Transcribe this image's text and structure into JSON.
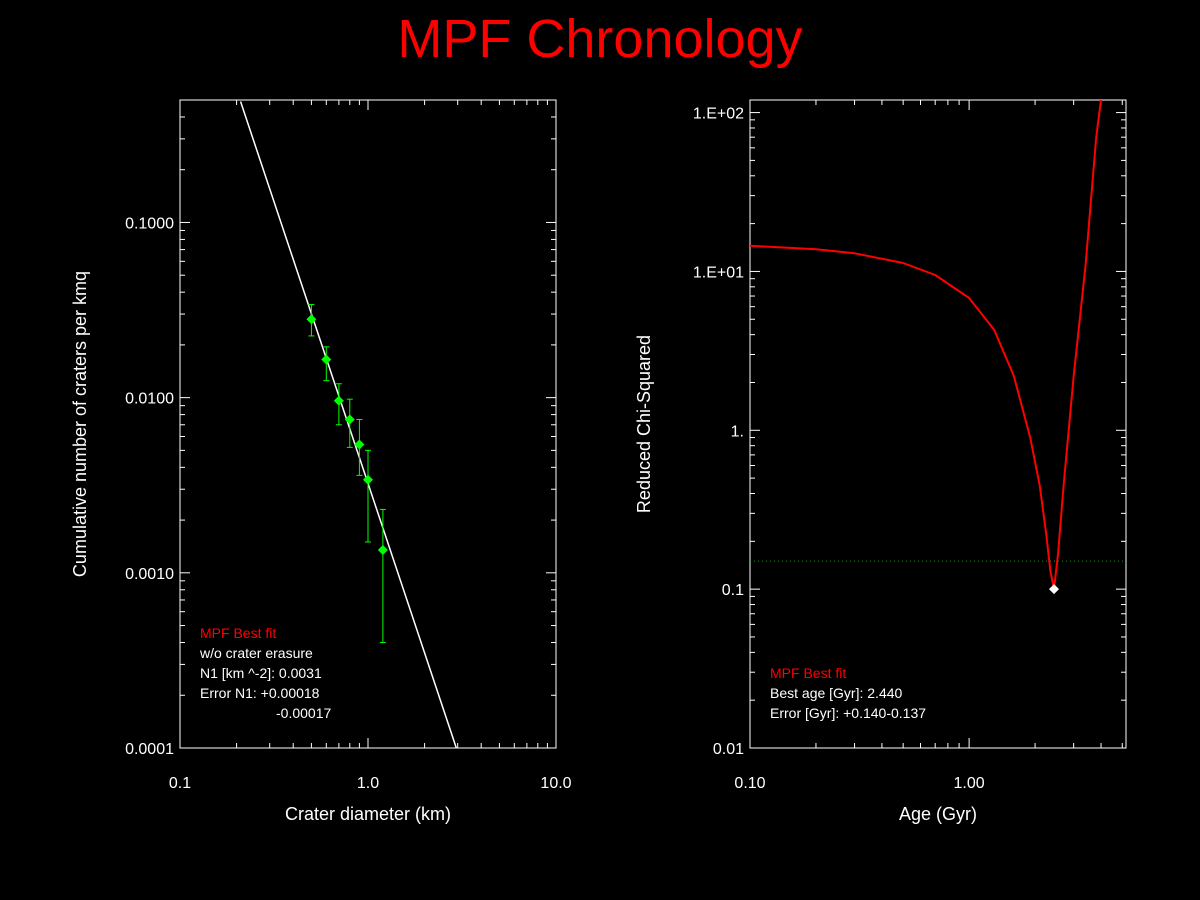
{
  "title": "MPF Chronology",
  "colors": {
    "background": "#000000",
    "title": "#ff0000",
    "axes": "#ffffff",
    "data_points": "#00ff00",
    "fit_curve_left": "#ffffff",
    "fit_curve_right": "#ff0000",
    "threshold_line": "#00aa00"
  },
  "chart_data": [
    {
      "type": "scatter",
      "xlabel": "Crater diameter (km)",
      "ylabel": "Cumulative number of craters per kmq",
      "x_scale": "log",
      "y_scale": "log",
      "xlim": [
        0.1,
        10.0
      ],
      "ylim": [
        0.0001,
        0.5
      ],
      "x_tick_labels": [
        "0.1",
        "1.0",
        "10.0"
      ],
      "x_tick_values": [
        0.1,
        1.0,
        10.0
      ],
      "y_tick_labels": [
        "0.0001",
        "0.0010",
        "0.0100",
        "0.1000"
      ],
      "y_tick_values": [
        0.0001,
        0.001,
        0.01,
        0.1
      ],
      "points": [
        {
          "x": 0.5,
          "y": 0.028,
          "err_low": 0.0225,
          "err_high": 0.034
        },
        {
          "x": 0.6,
          "y": 0.0165,
          "err_low": 0.0125,
          "err_high": 0.0195
        },
        {
          "x": 0.7,
          "y": 0.0096,
          "err_low": 0.007,
          "err_high": 0.012
        },
        {
          "x": 0.8,
          "y": 0.0075,
          "err_low": 0.0052,
          "err_high": 0.0098
        },
        {
          "x": 0.9,
          "y": 0.0054,
          "err_low": 0.0036,
          "err_high": 0.0075
        },
        {
          "x": 1.0,
          "y": 0.0034,
          "err_low": 0.0015,
          "err_high": 0.005
        },
        {
          "x": 1.2,
          "y": 0.00135,
          "err_low": 0.0004,
          "err_high": 0.0023
        }
      ],
      "fit_line": [
        {
          "x": 0.21,
          "y": 0.49
        },
        {
          "x": 2.95,
          "y": 0.0001
        }
      ],
      "annotations": {
        "label": "MPF Best fit",
        "lines": [
          "w/o crater erasure",
          "N1 [km ^-2]: 0.0031",
          "Error N1: +0.00018",
          "-0.00017"
        ]
      }
    },
    {
      "type": "line",
      "xlabel": "Age (Gyr)",
      "ylabel": "Reduced Chi-Squared",
      "x_scale": "log",
      "y_scale": "log",
      "xlim": [
        0.1,
        5.2
      ],
      "ylim": [
        0.01,
        120
      ],
      "x_tick_labels": [
        "0.10",
        "1.00"
      ],
      "x_tick_values": [
        0.1,
        1.0
      ],
      "y_tick_labels": [
        "0.01",
        "0.1",
        "1.",
        "1.E+01",
        "1.E+02"
      ],
      "y_tick_values": [
        0.01,
        0.1,
        1,
        10,
        100
      ],
      "series": [
        {
          "x": [
            0.1,
            0.2,
            0.3,
            0.5,
            0.7,
            1.0,
            1.3,
            1.6,
            1.9,
            2.1,
            2.25,
            2.35,
            2.44,
            2.55,
            2.7,
            3.0,
            3.4,
            3.8,
            4.0
          ],
          "y": [
            14.5,
            13.8,
            13.0,
            11.3,
            9.5,
            6.8,
            4.3,
            2.2,
            0.9,
            0.45,
            0.22,
            0.13,
            0.1,
            0.17,
            0.45,
            2.2,
            11.0,
            70.0,
            130.0
          ]
        }
      ],
      "best_point": {
        "x": 2.44,
        "y": 0.1
      },
      "threshold": 0.15,
      "annotations": {
        "label": "MPF Best fit",
        "lines": [
          "Best age [Gyr]: 2.440",
          "Error [Gyr]: +0.140-0.137"
        ]
      }
    }
  ]
}
